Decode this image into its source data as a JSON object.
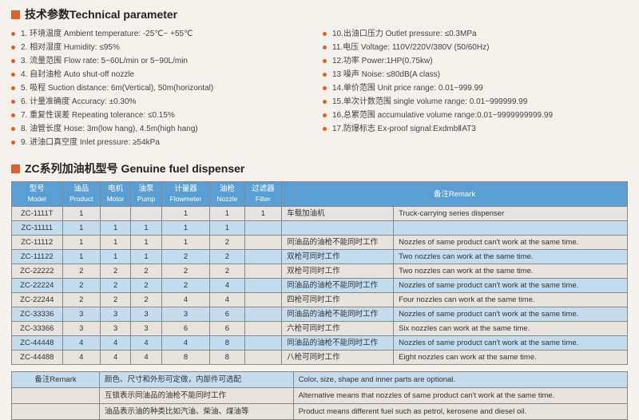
{
  "sections": {
    "tech_title": "技术参数Technical parameter",
    "model_title": "ZC系列加油机型号 Genuine fuel dispenser"
  },
  "params_left": [
    "1. 环境温度 Ambient temperature: -25℃~ +55℃",
    "2. 相对湿度 Humidity: ≤95%",
    "3. 流量范围 Flow rate: 5~60L/min or 5~90L/min",
    "4. 自封油枪 Auto shut-off nozzle",
    "5. 吸程 Suction distance: 6m(Vertical), 50m(horizontal)",
    "6. 计量准确度 Accuracy: ±0.30%",
    "7. 重复性误差 Repeating tolerance: ≤0.15%",
    "8. 油管长度 Hose: 3m(low hang), 4.5m(high hang)",
    "9. 进油口真空度 Inlet pressure: ≥54kPa"
  ],
  "params_right": [
    "10.出油口压力 Outlet pressure: ≤0.3MPa",
    "11.电压 Voltage: 110V/220V/380V (50/60Hz)",
    "12.功率 Power:1HP(0.75kw)",
    "13 噪声 Noise: ≤80dB(A class)",
    "14.单价范围 Unit price range: 0.01~999.99",
    "15.单次计数范围 single volume range: 0.01~999999.99",
    "16.总累范围 accumulative volume range:0.01~9999999999.99",
    "17.防爆标志 Ex-proof signal:ExdmbⅡAT3"
  ],
  "table": {
    "headers": [
      {
        "cn": "型号",
        "en": "Model"
      },
      {
        "cn": "油品",
        "en": "Product"
      },
      {
        "cn": "电机",
        "en": "Motor"
      },
      {
        "cn": "油泵",
        "en": "Pump"
      },
      {
        "cn": "计量器",
        "en": "Flowmeter"
      },
      {
        "cn": "油枪",
        "en": "Nozzle"
      },
      {
        "cn": "过滤器",
        "en": "Filter"
      },
      {
        "cn": "",
        "en": "备注Remark"
      }
    ],
    "rows": [
      {
        "c": [
          "ZC-1111T",
          "1",
          "",
          "",
          "1",
          "1",
          "1"
        ],
        "rcn": "车载加油机",
        "ren": "Truck-carrying series dispenser"
      },
      {
        "c": [
          "ZC-11111",
          "1",
          "1",
          "1",
          "1",
          "1",
          ""
        ],
        "rcn": "",
        "ren": ""
      },
      {
        "c": [
          "ZC-11112",
          "1",
          "1",
          "1",
          "1",
          "2",
          ""
        ],
        "rcn": "同油品的油枪不能同时工作",
        "ren": "Nozzles of same product can't work at the same time."
      },
      {
        "c": [
          "ZC-11122",
          "1",
          "1",
          "1",
          "2",
          "2",
          ""
        ],
        "rcn": "双枪可同时工作",
        "ren": "Two nozzles can work at the same time."
      },
      {
        "c": [
          "ZC-22222",
          "2",
          "2",
          "2",
          "2",
          "2",
          ""
        ],
        "rcn": "双枪可同时工作",
        "ren": "Two nozzles can work at the same time."
      },
      {
        "c": [
          "ZC-22224",
          "2",
          "2",
          "2",
          "2",
          "4",
          ""
        ],
        "rcn": "同油品的油枪不能同时工作",
        "ren": "Nozzles of same product can't work at the same time."
      },
      {
        "c": [
          "ZC-22244",
          "2",
          "2",
          "2",
          "4",
          "4",
          ""
        ],
        "rcn": "四枪可同时工作",
        "ren": "Four nozzles can work at the same time."
      },
      {
        "c": [
          "ZC-33336",
          "3",
          "3",
          "3",
          "3",
          "6",
          ""
        ],
        "rcn": "同油品的油枪不能同时工作",
        "ren": "Nozzles of same product can't work at the same time."
      },
      {
        "c": [
          "ZC-33366",
          "3",
          "3",
          "3",
          "6",
          "6",
          ""
        ],
        "rcn": "六枪可同时工作",
        "ren": "Six nozzles can work at the same time."
      },
      {
        "c": [
          "ZC-44448",
          "4",
          "4",
          "4",
          "4",
          "8",
          ""
        ],
        "rcn": "同油品的油枪不能同时工作",
        "ren": "Nozzles of same product can't work at the same time."
      },
      {
        "c": [
          "ZC-44488",
          "4",
          "4",
          "4",
          "8",
          "8",
          ""
        ],
        "rcn": "八枪可同时工作",
        "ren": "Eight nozzles can work at the same time."
      }
    ]
  },
  "notes": {
    "header": "备注Remark",
    "rows": [
      {
        "cn": "颜色、尺寸和外形可定做，内部件可选配",
        "en": "Color, size, shape and inner parts are optional."
      },
      {
        "cn": "互锁表示同油品的油枪不能同时工作",
        "en": "Alternative means that nozzles of same product can't work at the same time."
      },
      {
        "cn": "油品表示油的种类比如汽油、柴油、煤油等",
        "en": "Product means different fuel such as petrol, kerosene and diesel oil."
      }
    ]
  },
  "colors": {
    "accent": "#d9632a",
    "th_bg": "#5a9fd4",
    "row_even": "#c3ddee",
    "row_odd": "#e8e4dd",
    "page_bg": "#f5f2ed"
  }
}
